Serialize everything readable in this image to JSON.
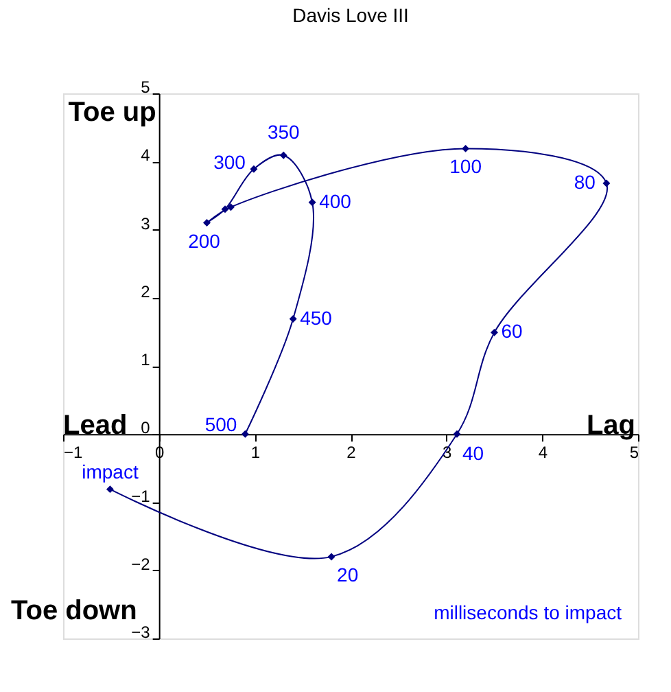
{
  "chart_data": {
    "type": "line",
    "title": "Davis Love III",
    "x": [
      -0.51,
      1.8,
      3.11,
      3.5,
      4.67,
      3.2,
      0.75,
      0.5,
      0.69,
      0.99,
      1.3,
      1.6,
      1.4,
      0.9
    ],
    "series": [
      {
        "color": "#000080",
        "values": [
          -0.81,
          -1.8,
          0,
          1.49,
          3.68,
          4.19,
          3.33,
          3.1,
          3.3,
          3.89,
          4.09,
          3.4,
          1.69,
          0
        ]
      }
    ],
    "xlim": [
      -1,
      5
    ],
    "xticks": [
      -1,
      0,
      1,
      2,
      3,
      4,
      5
    ],
    "ylim": [
      -3,
      5
    ],
    "yticks": [
      -3,
      -2,
      -1,
      0,
      1,
      2,
      3,
      4,
      5
    ],
    "annotations": [
      {
        "text": "impact",
        "x": -0.51,
        "y": -0.81
      },
      {
        "text": "20",
        "x": 1.8,
        "y": -1.8
      },
      {
        "text": "40",
        "x": 3.11,
        "y": 0
      },
      {
        "text": "60",
        "x": 3.5,
        "y": 1.49
      },
      {
        "text": "80",
        "x": 4.67,
        "y": 3.68
      },
      {
        "text": "100",
        "x": 3.2,
        "y": 4.19
      },
      {
        "text": "200",
        "x": 0.5,
        "y": 3.1
      },
      {
        "text": "300",
        "x": 0.99,
        "y": 3.89
      },
      {
        "text": "350",
        "x": 1.3,
        "y": 4.09
      },
      {
        "text": "400",
        "x": 1.6,
        "y": 3.4
      },
      {
        "text": "450",
        "x": 1.4,
        "y": 1.69
      },
      {
        "text": "500",
        "x": 0.9,
        "y": 0
      },
      "Toe up",
      "Lead",
      "Lag",
      "Toe down",
      "milliseconds to impact"
    ],
    "marker": "diamond",
    "grid": false
  }
}
